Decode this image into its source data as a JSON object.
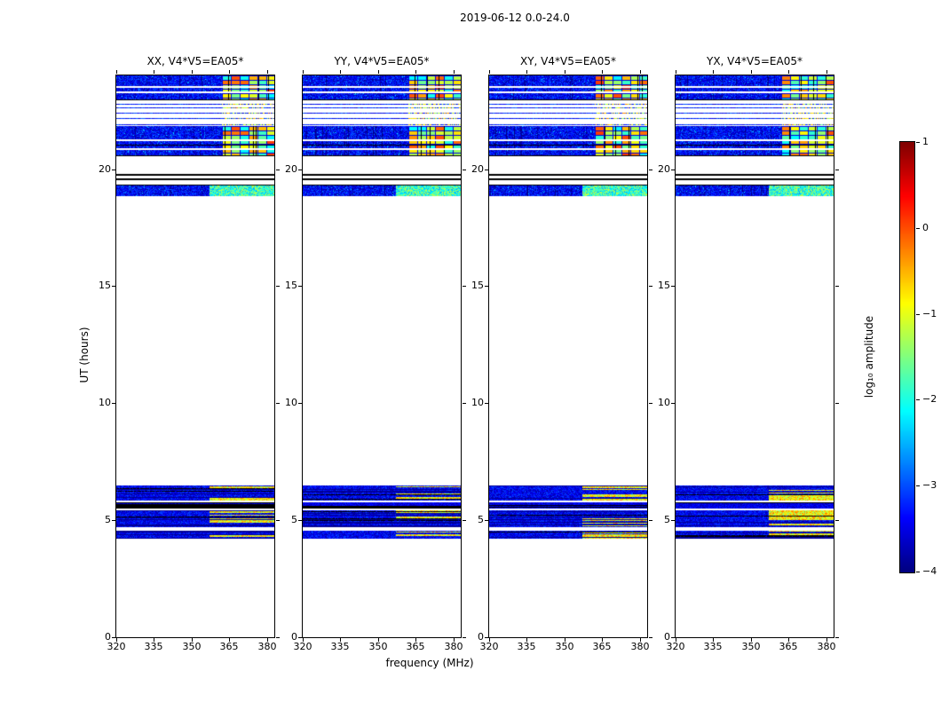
{
  "chart_data": {
    "type": "heatmap",
    "title": "2019-06-12 0.0-24.0",
    "xlabel": "frequency (MHz)",
    "ylabel": "UT (hours)",
    "xlim": [
      320,
      383
    ],
    "ylim": [
      0,
      24
    ],
    "xticks": [
      320,
      335,
      350,
      365,
      380
    ],
    "xtick_labels": [
      "320",
      "335",
      "350",
      "365",
      "380"
    ],
    "yticks": [
      0,
      5,
      10,
      15,
      20
    ],
    "ytick_labels": [
      "0",
      "5",
      "10",
      "15",
      "20"
    ],
    "grid": false,
    "colormap": "jet",
    "panels": [
      {
        "pol": "XX",
        "title": "XX, V4*V5=EA05*"
      },
      {
        "pol": "YY",
        "title": "YY, V4*V5=EA05*"
      },
      {
        "pol": "XY",
        "title": "XY, V4*V5=EA05*"
      },
      {
        "pol": "YX",
        "title": "YX, V4*V5=EA05*"
      }
    ],
    "colorbar": {
      "label": "log₁₀ amplitude",
      "vmin": -4,
      "vmax": 1,
      "ticks": [
        1,
        0,
        -1,
        -2,
        -3,
        -4
      ],
      "tick_labels": [
        "1",
        "0",
        "−1",
        "−2",
        "−3",
        "−4"
      ],
      "position": "right"
    },
    "bright_region": {
      "f_start_blocks": 362,
      "f_start_stripes": 357,
      "f_start_soft": 357
    },
    "bands": [
      {
        "t0": 22.95,
        "t1": 24.0,
        "style": "noise",
        "bright": "blocks",
        "white_lines": [
          23.3,
          23.55
        ],
        "black_lines": [
          22.98
        ]
      },
      {
        "t0": 21.85,
        "t1": 22.95,
        "style": "gap",
        "bright": "none",
        "blue_lines": [
          21.93,
          22.18,
          22.42,
          22.62,
          22.8
        ]
      },
      {
        "t0": 20.55,
        "t1": 21.85,
        "style": "noise",
        "bright": "blocks",
        "white_lines": [
          20.9,
          21.28
        ],
        "black_lines": [
          20.58,
          21.05
        ]
      },
      {
        "t0": 19.5,
        "t1": 19.85,
        "style": "black",
        "bright": "none",
        "lines": [
          19.6,
          19.78
        ]
      },
      {
        "t0": 18.85,
        "t1": 19.35,
        "style": "noise",
        "bright": "soft",
        "black_lines": [
          19.34
        ]
      },
      {
        "t0": 5.85,
        "t1": 6.5,
        "style": "striped",
        "bright": "stripes"
      },
      {
        "t0": 5.5,
        "t1": 5.78,
        "style": "dark_striped",
        "bright": "none"
      },
      {
        "t0": 4.7,
        "t1": 5.42,
        "style": "striped",
        "bright": "stripes"
      },
      {
        "t0": 4.2,
        "t1": 4.55,
        "style": "striped",
        "bright": "stripes"
      }
    ]
  }
}
